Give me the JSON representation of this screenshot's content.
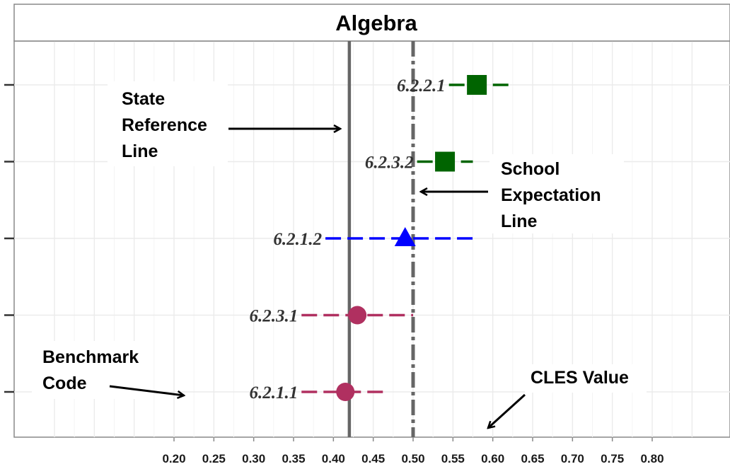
{
  "chart_data": {
    "type": "scatter",
    "title": "Algebra",
    "xlabel": "",
    "ylabel": "",
    "xlim": [
      0.05,
      0.87
    ],
    "x_ticks": [
      "0.20",
      "0.25",
      "0.30",
      "0.35",
      "0.40",
      "0.45",
      "0.50",
      "0.55",
      "0.60",
      "0.65",
      "0.70",
      "0.75",
      "0.80"
    ],
    "grid": true,
    "reference_lines": [
      {
        "name": "State Reference Line",
        "x": 0.42,
        "style": "solid"
      },
      {
        "name": "School Expectation Line",
        "x": 0.5,
        "style": "dashdot"
      }
    ],
    "points": [
      {
        "code": "6.2.2.1",
        "x": 0.58,
        "ci": [
          0.545,
          0.625
        ],
        "shape": "square",
        "color": "#006400"
      },
      {
        "code": "6.2.3.2",
        "x": 0.54,
        "ci": [
          0.505,
          0.575
        ],
        "shape": "square",
        "color": "#006400"
      },
      {
        "code": "6.2.1.2",
        "x": 0.49,
        "ci": [
          0.39,
          0.575
        ],
        "shape": "triangle",
        "color": "#0000ff"
      },
      {
        "code": "6.2.3.1",
        "x": 0.43,
        "ci": [
          0.36,
          0.5
        ],
        "shape": "circle",
        "color": "#b03060"
      },
      {
        "code": "6.2.1.1",
        "x": 0.415,
        "ci": [
          0.36,
          0.465
        ],
        "shape": "circle",
        "color": "#b03060"
      }
    ],
    "annotations": {
      "state_reference": [
        "State",
        "Reference",
        "Line"
      ],
      "school_expectation": [
        "School",
        "Expectation",
        "Line"
      ],
      "benchmark_code": [
        "Benchmark",
        "Code"
      ],
      "cles_value": "CLES Value"
    }
  }
}
